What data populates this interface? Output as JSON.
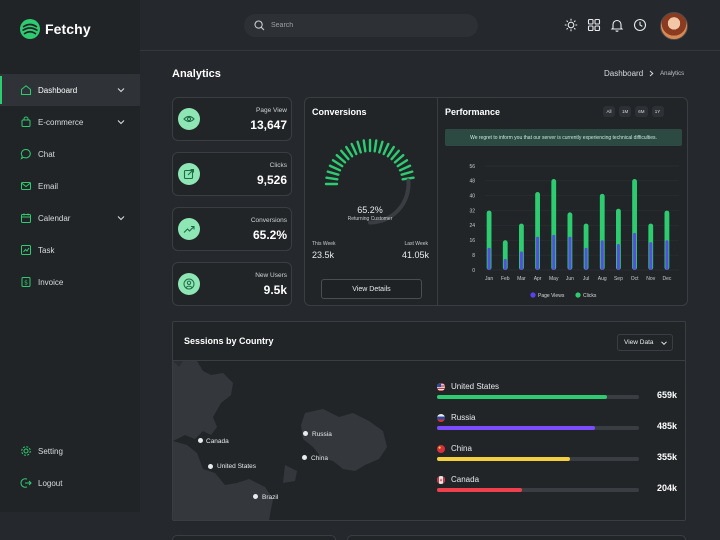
{
  "app": {
    "name": "Fetchy",
    "accent": "#2ecc71"
  },
  "search": {
    "placeholder": "Search"
  },
  "topbar": {
    "icons": [
      "sun-icon",
      "apps-grid-icon",
      "bell-icon",
      "history-icon"
    ]
  },
  "sidebar": {
    "items": [
      {
        "label": "Dashboard",
        "icon": "home-icon",
        "active": true,
        "has_submenu": true
      },
      {
        "label": "E-commerce",
        "icon": "bag-icon",
        "has_submenu": true
      },
      {
        "label": "Chat",
        "icon": "chat-icon"
      },
      {
        "label": "Email",
        "icon": "mail-icon"
      },
      {
        "label": "Calendar",
        "icon": "calendar-icon",
        "has_submenu": true
      },
      {
        "label": "Task",
        "icon": "task-icon"
      },
      {
        "label": "Invoice",
        "icon": "invoice-icon"
      }
    ],
    "bottom": [
      {
        "label": "Setting",
        "icon": "gear-icon"
      },
      {
        "label": "Logout",
        "icon": "logout-icon"
      }
    ]
  },
  "page": {
    "title": "Analytics",
    "breadcrumb": {
      "home": "Dashboard",
      "current": "Analytics"
    }
  },
  "stats": [
    {
      "label": "Page View",
      "value": "13,647",
      "icon": "eye-icon"
    },
    {
      "label": "Clicks",
      "value": "9,526",
      "icon": "external-link-icon"
    },
    {
      "label": "Conversions",
      "value": "65.2%",
      "icon": "trend-up-icon"
    },
    {
      "label": "New Users",
      "value": "9.5k",
      "icon": "user-icon"
    }
  ],
  "conversions": {
    "title": "Conversions",
    "percent_text": "65.2%",
    "percent": 65.2,
    "subtitle": "Returning Customer",
    "this_week_label": "This Week",
    "this_week_value": "23.5k",
    "last_week_label": "Last Week",
    "last_week_value": "41.05k",
    "button": "View Details"
  },
  "performance": {
    "title": "Performance",
    "ranges": [
      "All",
      "1M",
      "6M",
      "1Y"
    ],
    "alert": "We regret to inform you that our server is currently experiencing technical difficulties."
  },
  "chart_data": {
    "type": "bar",
    "categories": [
      "Jan",
      "Feb",
      "Mar",
      "Apr",
      "May",
      "Jun",
      "Jul",
      "Aug",
      "Sep",
      "Oct",
      "Nov",
      "Dec"
    ],
    "series": [
      {
        "name": "Page Views",
        "color": "#5b3ff0",
        "values": [
          12,
          6,
          10,
          18,
          19,
          18,
          12,
          16,
          14,
          20,
          15,
          16
        ]
      },
      {
        "name": "Clicks",
        "color": "#2ecc71",
        "values": [
          32,
          16,
          25,
          42,
          49,
          31,
          25,
          41,
          33,
          49,
          25,
          32
        ]
      }
    ],
    "yticks": [
      "0",
      "8",
      "16",
      "24",
      "32",
      "40",
      "48",
      "56"
    ],
    "ylim": [
      0,
      56
    ],
    "legend": "bottom"
  },
  "sessions": {
    "title": "Sessions by Country",
    "button": "View Data",
    "map_labels": [
      "Canada",
      "United States",
      "Brazil",
      "Russia",
      "China"
    ],
    "countries": [
      {
        "name": "United States",
        "value": "659k",
        "fraction": 0.84,
        "color": "#2ecc71",
        "flag": "us-flag-icon"
      },
      {
        "name": "Russia",
        "value": "485k",
        "fraction": 0.78,
        "color": "#7c4dff",
        "flag": "russia-flag-icon"
      },
      {
        "name": "China",
        "value": "355k",
        "fraction": 0.66,
        "color": "#f4d03f",
        "flag": "china-flag-icon"
      },
      {
        "name": "Canada",
        "value": "204k",
        "fraction": 0.42,
        "color": "#f0404e",
        "flag": "canada-flag-icon"
      }
    ]
  }
}
